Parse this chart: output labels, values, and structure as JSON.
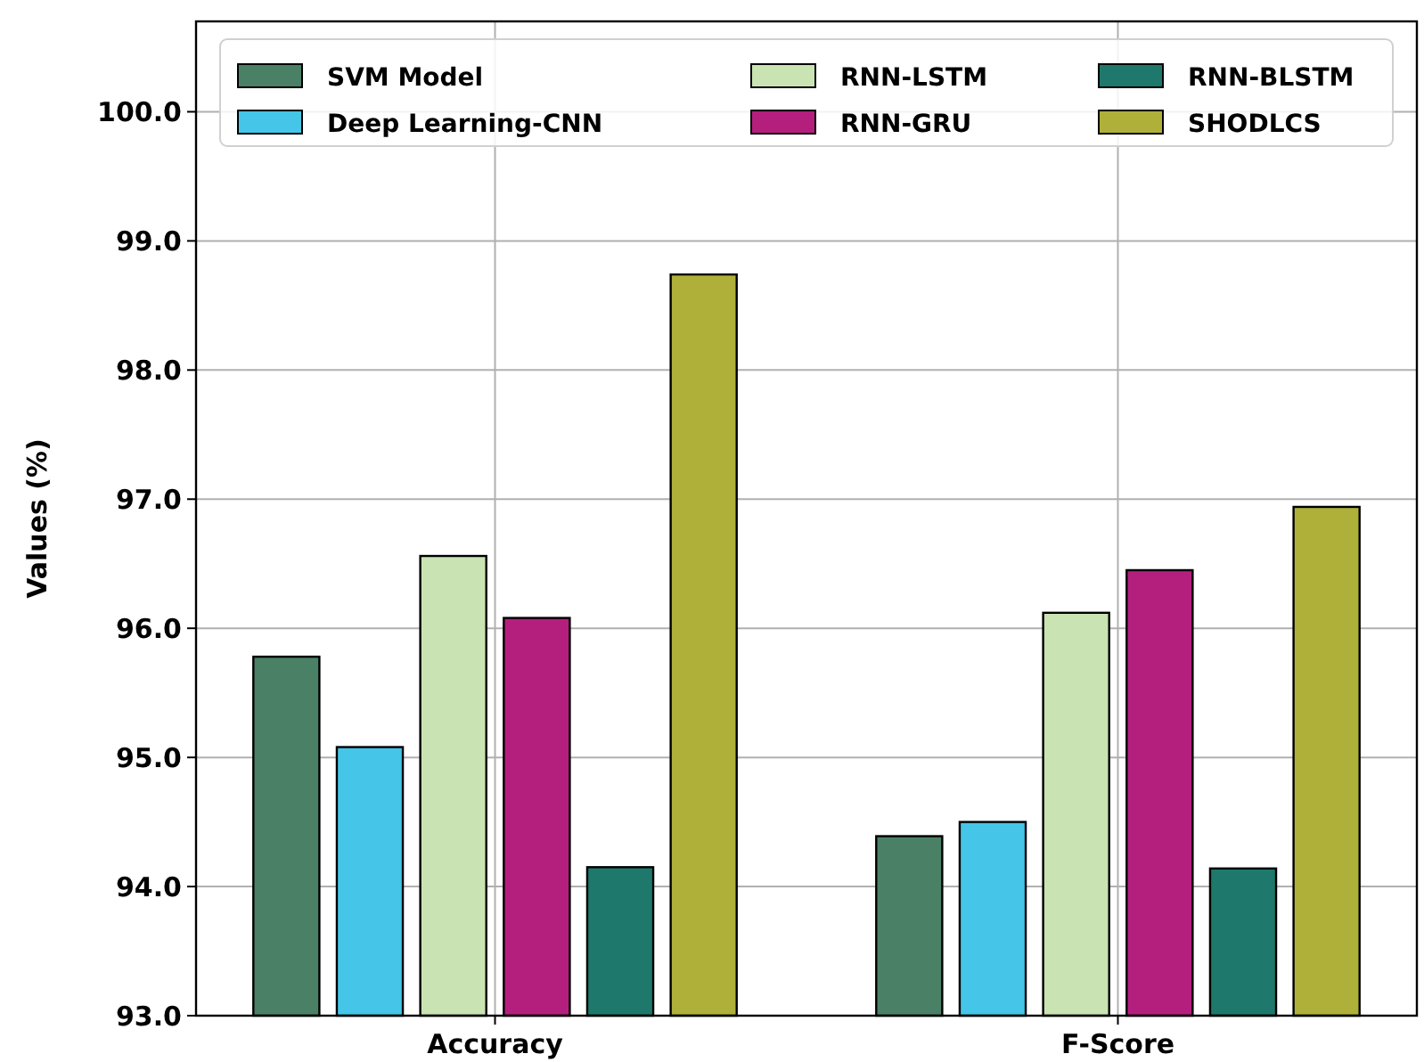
{
  "chart_data": {
    "type": "bar",
    "ylabel": "Values (%)",
    "categories": [
      "Accuracy",
      "F-Score"
    ],
    "series": [
      {
        "name": "SVM Model",
        "color": "#4a8166",
        "values": [
          95.78,
          94.39
        ]
      },
      {
        "name": "Deep Learning-CNN",
        "color": "#45c5e8",
        "values": [
          95.08,
          94.5
        ]
      },
      {
        "name": "RNN-LSTM",
        "color": "#c9e3b3",
        "values": [
          96.56,
          96.12
        ]
      },
      {
        "name": "RNN-GRU",
        "color": "#b41f7e",
        "values": [
          96.08,
          96.45
        ]
      },
      {
        "name": "RNN-BLSTM",
        "color": "#1e786b",
        "values": [
          94.15,
          94.14
        ]
      },
      {
        "name": "SHODLCS",
        "color": "#afb03a",
        "values": [
          98.74,
          96.94
        ]
      }
    ],
    "ylim": [
      93,
      100.7
    ],
    "yticks": [
      {
        "value": 93,
        "label": "93.0"
      },
      {
        "value": 94,
        "label": "94.0"
      },
      {
        "value": 95,
        "label": "95.0"
      },
      {
        "value": 96,
        "label": "96.0"
      },
      {
        "value": 97,
        "label": "97.0"
      },
      {
        "value": 98,
        "label": "98.0"
      },
      {
        "value": 99,
        "label": "99.0"
      },
      {
        "value": 100,
        "label": "100.0"
      }
    ],
    "grid": true,
    "legend": "top"
  }
}
